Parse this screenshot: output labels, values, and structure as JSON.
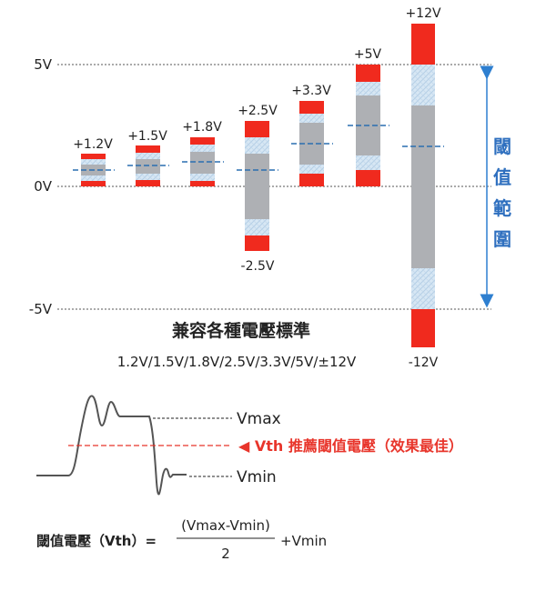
{
  "colors": {
    "red": "#f02a1e",
    "gray": "#aeb0b4",
    "hatch": "#cfe2f1",
    "threshold_line": "#2a6fb0",
    "arrow": "#2e7fd0",
    "axis_dash": "#555555",
    "emphasis": "#e8352b",
    "text": "#222222"
  },
  "axis_labels": {
    "plus5": "5V",
    "zero": "0V",
    "minus5": "-5V"
  },
  "bars": [
    {
      "top_label": "+1.2V"
    },
    {
      "top_label": "+1.5V"
    },
    {
      "top_label": "+1.8V"
    },
    {
      "top_label": "+2.5V",
      "bottom_label": "-2.5V"
    },
    {
      "top_label": "+3.3V"
    },
    {
      "top_label": "+5V"
    },
    {
      "top_label": "+12V",
      "bottom_label": "-12V"
    }
  ],
  "range_label_chars": [
    "閾",
    "值",
    "範",
    "圍"
  ],
  "title": "兼容各種電壓標準",
  "subtitle": "1.2V/1.5V/1.8V/2.5V/3.3V/5V/±12V",
  "waveform": {
    "vmax_label": "Vmax",
    "vth_label": "◀ Vth 推薦閾值電壓（效果最佳）",
    "vmin_label": "Vmin"
  },
  "formula": {
    "lhs": "閾值電壓（Vth）=",
    "numerator": "(Vmax-Vmin)",
    "denominator": "2",
    "rhs": "+Vmin"
  }
}
